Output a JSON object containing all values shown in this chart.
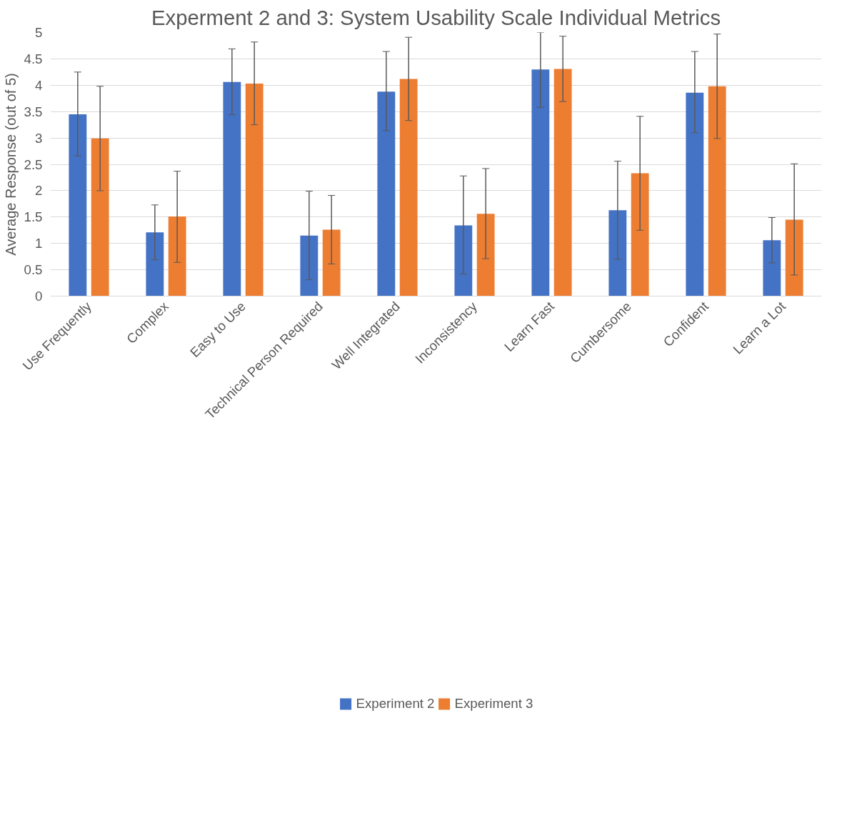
{
  "chart_data": {
    "type": "bar",
    "title": "Experment 2 and 3: System Usability Scale Individual Metrics",
    "ylabel": "Average Response (out of 5)",
    "categories": [
      "Use Frequently",
      "Complex",
      "Easy to Use",
      "Technical Person Required",
      "Well Integrated",
      "Inconsistency",
      "Learn Fast",
      "Cumbersome",
      "Confident",
      "Learn a Lot"
    ],
    "series": [
      {
        "name": "Experiment 2",
        "color": "#4472c4",
        "values": [
          3.45,
          1.21,
          4.06,
          1.15,
          3.88,
          1.34,
          4.3,
          1.63,
          3.86,
          1.06
        ],
        "errors": [
          [
            2.66,
            4.25
          ],
          [
            0.69,
            1.73
          ],
          [
            3.44,
            4.69
          ],
          [
            0.31,
            1.99
          ],
          [
            3.14,
            4.64
          ],
          [
            0.42,
            2.28
          ],
          [
            3.58,
            5.0
          ],
          [
            0.7,
            2.56
          ],
          [
            3.1,
            4.64
          ],
          [
            0.63,
            1.49
          ]
        ]
      },
      {
        "name": "Experiment 3",
        "color": "#ed7d31",
        "values": [
          2.99,
          1.51,
          4.03,
          1.26,
          4.12,
          1.56,
          4.31,
          2.33,
          3.98,
          1.45
        ],
        "errors": [
          [
            2.0,
            3.98
          ],
          [
            0.64,
            2.37
          ],
          [
            3.25,
            4.82
          ],
          [
            0.61,
            1.91
          ],
          [
            3.33,
            4.91
          ],
          [
            0.71,
            2.42
          ],
          [
            3.69,
            4.93
          ],
          [
            1.25,
            3.41
          ],
          [
            2.99,
            4.97
          ],
          [
            0.4,
            2.51
          ]
        ]
      }
    ],
    "ylim": [
      0,
      5
    ],
    "yticks": [
      0,
      0.5,
      1,
      1.5,
      2,
      2.5,
      3,
      3.5,
      4,
      4.5,
      5
    ],
    "grid": "y",
    "legend": "bottom"
  }
}
